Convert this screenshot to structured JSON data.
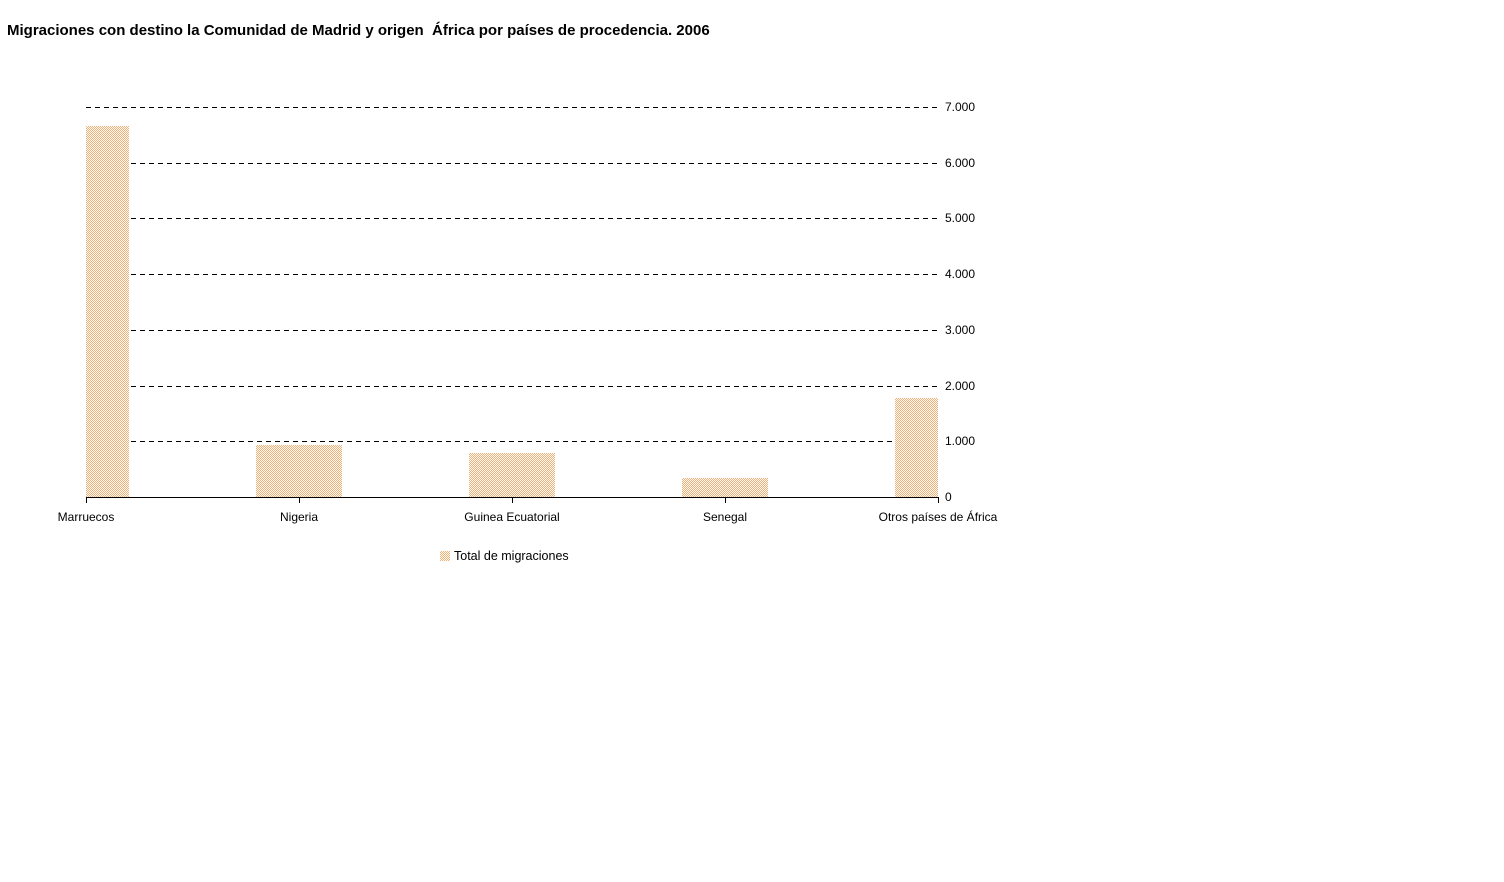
{
  "title": "Migraciones con destino la Comunidad de Madrid y origen  África por países de procedencia. 2006",
  "legend": {
    "label": "Total de migraciones"
  },
  "colors": {
    "bar_pattern_foreground": "#F2AE7B",
    "bar_pattern_background": "#FFFDF4",
    "gridline": "#000000",
    "axis": "#000000",
    "text": "#000000",
    "page_background": "#FFFFFF"
  },
  "chart_data": {
    "type": "bar",
    "title": "Migraciones con destino la Comunidad de Madrid y origen  África por países de procedencia. 2006",
    "categories": [
      "Marruecos",
      "Nigeria",
      "Guinea Ecuatorial",
      "Senegal",
      "Otros países de África"
    ],
    "series": [
      {
        "name": "Total de migraciones",
        "values": [
          6650,
          940,
          790,
          340,
          1770
        ]
      }
    ],
    "xlabel": "",
    "ylabel": "",
    "ylim": [
      0,
      7000
    ],
    "ytick_interval": 1000,
    "ytick_labels_top_to_bottom": [
      "7.000",
      "6.000",
      "5.000",
      "4.000",
      "3.000",
      "2.000",
      "1.000",
      "0"
    ],
    "grid": "horizontal-dashed",
    "y_axis_labels_side": "right",
    "legend_position": "bottom-center",
    "bar_fill_style": "checkerboard-pattern",
    "first_and_last_bars_clipped_at_plot_edges": true
  }
}
